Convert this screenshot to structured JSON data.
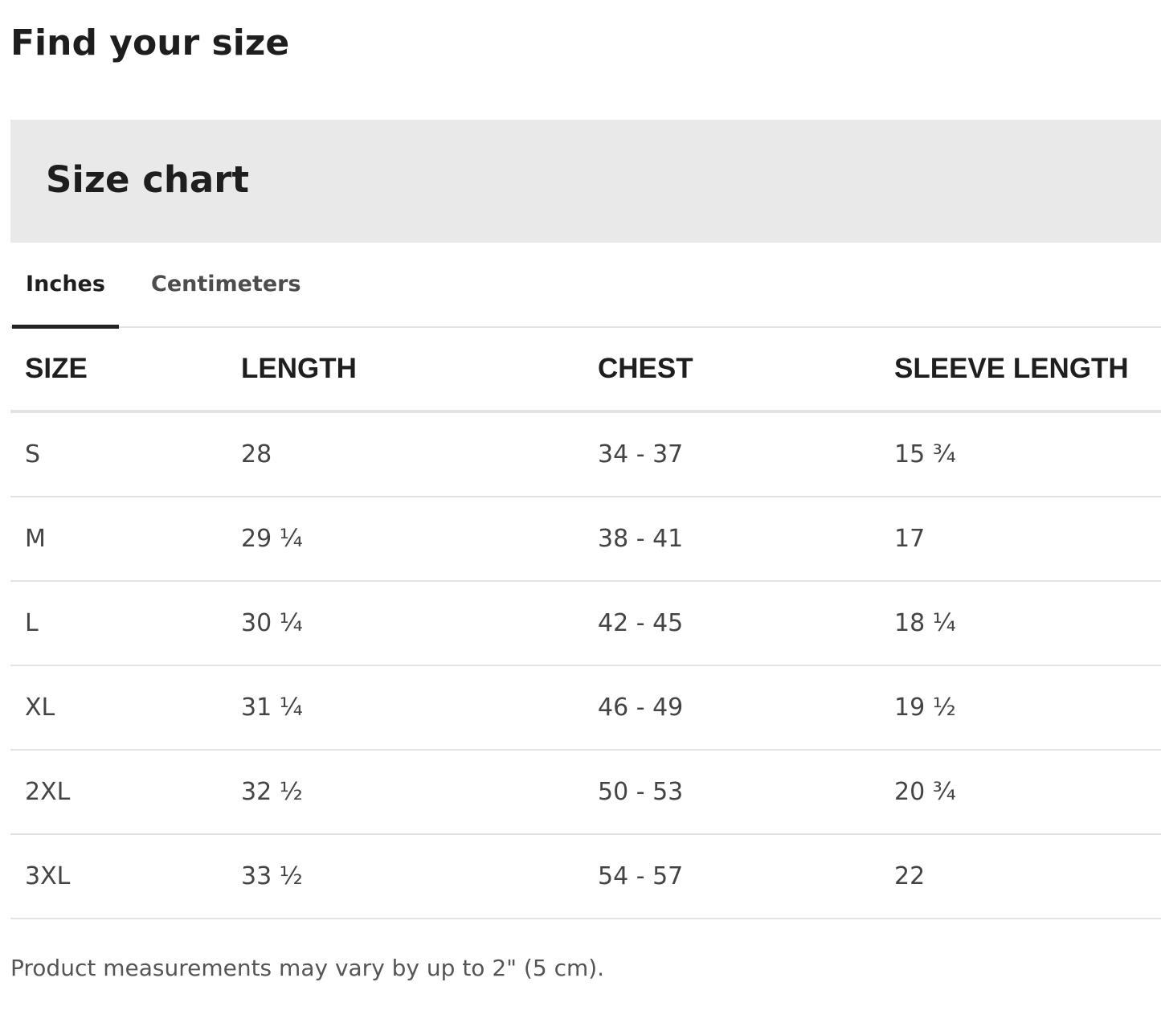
{
  "page_title": "Find your size",
  "section_title": "Size chart",
  "tabs": [
    {
      "label": "Inches",
      "active": true
    },
    {
      "label": "Centimeters",
      "active": false
    }
  ],
  "table": {
    "headers": [
      "SIZE",
      "LENGTH",
      "CHEST",
      "SLEEVE LENGTH"
    ],
    "rows": [
      [
        "S",
        "28",
        "34 - 37",
        "15 ¾"
      ],
      [
        "M",
        "29 ¼",
        "38 - 41",
        "17"
      ],
      [
        "L",
        "30 ¼",
        "42 - 45",
        "18 ¼"
      ],
      [
        "XL",
        "31 ¼",
        "46 - 49",
        "19 ½"
      ],
      [
        "2XL",
        "32 ½",
        "50 - 53",
        "20 ¾"
      ],
      [
        "3XL",
        "33 ½",
        "54 - 57",
        "22"
      ]
    ]
  },
  "note": "Product measurements may vary by up to 2\" (5 cm)."
}
